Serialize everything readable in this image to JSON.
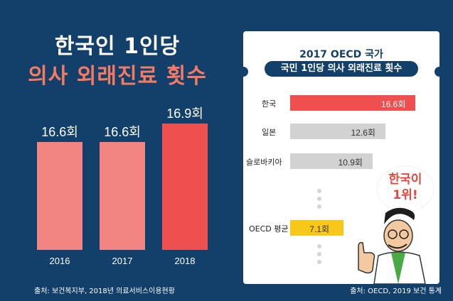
{
  "left": {
    "title_line1": "한국인 1인당",
    "title_line2": "의사 외래진료 횟수"
  },
  "right": {
    "title_line1": "2017 OECD 국가",
    "title_line2": "국민 1인당 의사 외래진료 횟수",
    "callout": "한국이\n1위!",
    "callout_line1": "한국이",
    "callout_line2": "1위!"
  },
  "sources": {
    "left": "출처: 보건복지부, 2018년 의료서비스이용현황",
    "right": "출처: OECD, 2019 보건 통계"
  },
  "colors": {
    "background": "#12406a",
    "bar_light": "#f28481",
    "bar_highlight": "#ef4f4f",
    "bar_gray": "#d2d2d2",
    "bar_oecd": "#f7c71a",
    "accent_text": "#f57a62"
  },
  "chart_data": [
    {
      "type": "bar",
      "categories": [
        "2016",
        "2017",
        "2018"
      ],
      "values": [
        16.6,
        16.6,
        16.9
      ],
      "data_labels": [
        "16.6회",
        "16.6회",
        "16.9회"
      ],
      "highlight_index": 2,
      "title": "한국인 1인당 의사 외래진료 횟수"
    },
    {
      "type": "bar",
      "orientation": "horizontal",
      "categories": [
        "한국",
        "일본",
        "슬로바키아",
        "OECD 평균"
      ],
      "values": [
        16.6,
        12.6,
        10.9,
        7.1
      ],
      "data_labels": [
        "16.6회",
        "12.6회",
        "10.9회",
        "7.1회"
      ],
      "title": "2017 OECD 국가 국민 1인당 의사 외래진료 횟수"
    }
  ]
}
